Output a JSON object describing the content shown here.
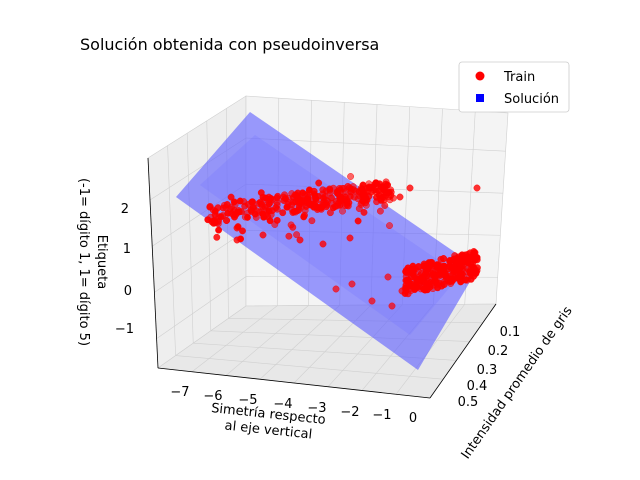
{
  "chart_data": {
    "type": "scatter",
    "title": "Solución obtenida con pseudoinversa",
    "legend": {
      "placement": "top-right",
      "entries": [
        {
          "label": "Train",
          "marker": "circle",
          "color": "#ff0000"
        },
        {
          "label": "Solución",
          "marker": "square",
          "color": "#0000ff"
        }
      ]
    },
    "axes": {
      "x": {
        "label": "Intensidad promedio de gris",
        "ticks": [
          "0.1",
          "0.2",
          "0.3",
          "0.4",
          "0.5"
        ],
        "range": [
          0.05,
          0.55
        ]
      },
      "y": {
        "label": [
          "Simetría respecto",
          "al eje vertical"
        ],
        "ticks": [
          "−7",
          "−6",
          "−5",
          "−4",
          "−3",
          "−2",
          "−1",
          "0"
        ],
        "range": [
          -7.5,
          0.2
        ]
      },
      "z": {
        "label": [
          "Etiqueta",
          "(-1= dígito 1, 1= dígito 5)"
        ],
        "ticks": [
          "−1",
          "0",
          "1",
          "2"
        ],
        "range": [
          -1.6,
          2.7
        ]
      }
    },
    "grid": true,
    "series": [
      {
        "name": "Train",
        "color": "#ff0000",
        "clusters": [
          {
            "label": "dígito 5",
            "z": 1,
            "x_range": [
              0.1,
              0.5
            ],
            "y_range": [
              -7.3,
              -1.5
            ]
          },
          {
            "label": "dígito 1",
            "z": -1,
            "x_range": [
              0.05,
              0.2
            ],
            "y_range": [
              -1.0,
              0
            ]
          }
        ]
      },
      {
        "name": "Solución",
        "color": "#0000ff",
        "type": "plane",
        "alpha": 0.4
      }
    ]
  },
  "colors": {
    "pane": "#f2f2f2",
    "grid": "#d0d0d0",
    "train": "#ff0000",
    "plane": "#5a5aff"
  }
}
